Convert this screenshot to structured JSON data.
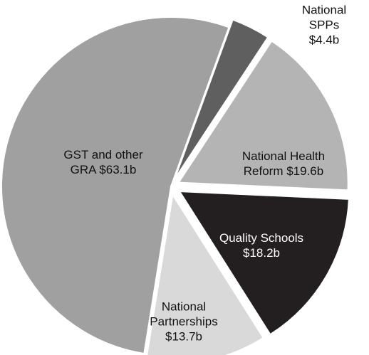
{
  "chart_data": {
    "type": "pie",
    "values": [
      63.1,
      4.4,
      19.6,
      18.2,
      13.7
    ],
    "value_labels": [
      "GST and other\nGRA $63.1b",
      "National SPPs\n$4.4b",
      "National Health\nReform $19.6b",
      "Quality Schools\n$18.2b",
      "National\nPartnerships\n$13.7b"
    ],
    "colors": [
      "#a0a0a0",
      "#5f5f5f",
      "#b4b4b4",
      "#231f20",
      "#d9d9d9"
    ]
  }
}
